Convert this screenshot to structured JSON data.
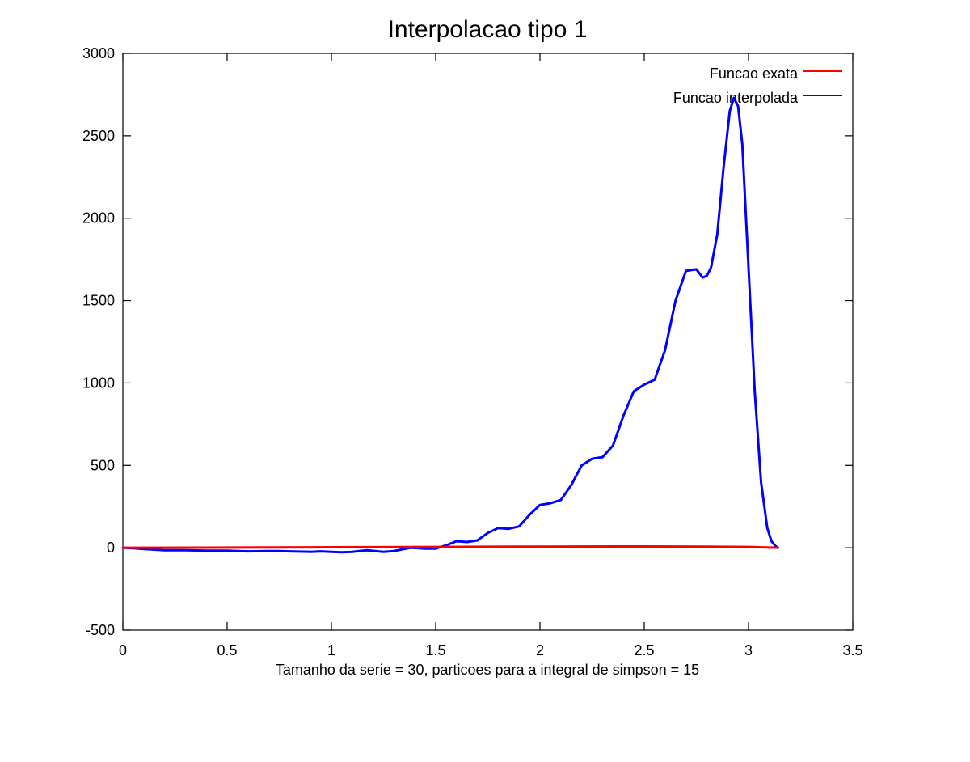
{
  "chart_data": {
    "type": "line",
    "title": "Interpolacao tipo 1",
    "xlabel": "Tamanho da serie = 30, particoes para a integral de simpson = 15",
    "ylabel": "",
    "xlim": [
      0,
      3.5
    ],
    "ylim": [
      -500,
      3000
    ],
    "xticks": [
      "0",
      "0.5",
      "1",
      "1.5",
      "2",
      "2.5",
      "3",
      "3.5"
    ],
    "xtick_values": [
      0,
      0.5,
      1,
      1.5,
      2,
      2.5,
      3,
      3.5
    ],
    "yticks": [
      "-500",
      "0",
      "500",
      "1000",
      "1500",
      "2000",
      "2500",
      "3000"
    ],
    "ytick_values": [
      -500,
      0,
      500,
      1000,
      1500,
      2000,
      2500,
      3000
    ],
    "grid": false,
    "legend_position": "top-right",
    "series": [
      {
        "name": "Funcao exata",
        "color": "#ff0000",
        "x": [
          0,
          0.5,
          1.0,
          1.5,
          2.0,
          2.5,
          2.8,
          3.0,
          3.1416
        ],
        "y": [
          0,
          1,
          3,
          5,
          7,
          8,
          7,
          5,
          0
        ]
      },
      {
        "name": "Funcao interpolada",
        "color": "#0000ff",
        "x": [
          0,
          0.05,
          0.1,
          0.2,
          0.3,
          0.4,
          0.5,
          0.6,
          0.7,
          0.75,
          0.8,
          0.9,
          0.95,
          1.0,
          1.05,
          1.1,
          1.17,
          1.25,
          1.3,
          1.38,
          1.45,
          1.5,
          1.55,
          1.6,
          1.65,
          1.7,
          1.75,
          1.8,
          1.85,
          1.9,
          1.95,
          2.0,
          2.05,
          2.1,
          2.15,
          2.2,
          2.25,
          2.3,
          2.35,
          2.4,
          2.45,
          2.5,
          2.55,
          2.6,
          2.65,
          2.7,
          2.75,
          2.78,
          2.8,
          2.82,
          2.85,
          2.88,
          2.91,
          2.93,
          2.95,
          2.97,
          3.0,
          3.03,
          3.06,
          3.09,
          3.11,
          3.13,
          3.1416
        ],
        "y": [
          0,
          -3,
          -8,
          -15,
          -15,
          -18,
          -18,
          -22,
          -20,
          -20,
          -22,
          -25,
          -22,
          -25,
          -28,
          -25,
          -15,
          -25,
          -20,
          0,
          -5,
          -5,
          15,
          40,
          35,
          45,
          90,
          120,
          115,
          130,
          200,
          260,
          270,
          290,
          380,
          500,
          540,
          550,
          620,
          800,
          950,
          990,
          1020,
          1200,
          1500,
          1680,
          1690,
          1640,
          1650,
          1700,
          1900,
          2300,
          2650,
          2730,
          2680,
          2450,
          1700,
          950,
          400,
          120,
          40,
          10,
          0
        ]
      }
    ]
  }
}
